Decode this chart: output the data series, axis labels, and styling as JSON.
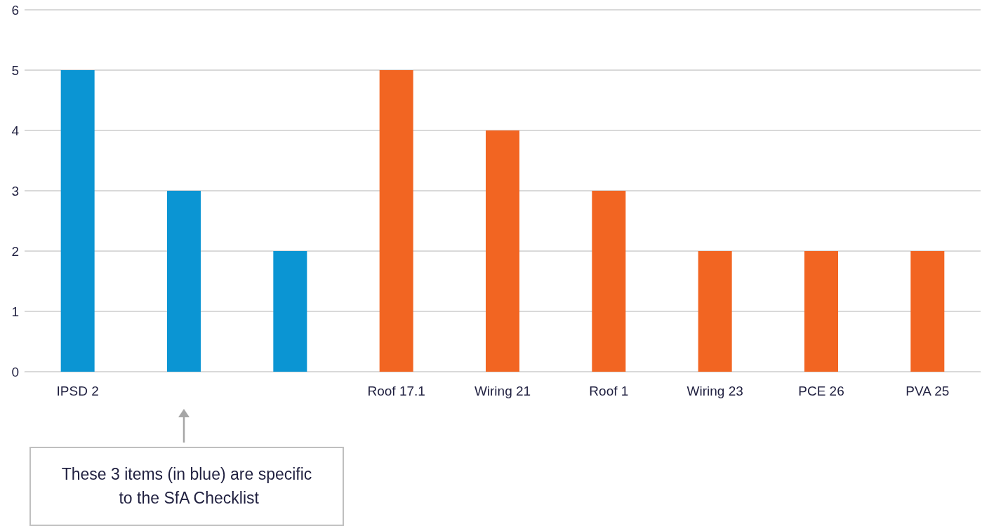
{
  "chart_data": {
    "type": "bar",
    "categories": [
      "IPSD 2",
      null,
      null,
      "Roof 17.1",
      "Wiring 21",
      "Roof 1",
      "Wiring 23",
      "PCE 26",
      "PVA 25"
    ],
    "values": [
      5,
      3,
      2,
      5,
      4,
      3,
      2,
      2,
      2
    ],
    "colors": [
      "#0b95d3",
      "#0b95d3",
      "#0b95d3",
      "#f26522",
      "#f26522",
      "#f26522",
      "#f26522",
      "#f26522",
      "#f26522"
    ],
    "ylim": [
      0,
      6
    ],
    "yticks": [
      0,
      1,
      2,
      3,
      4,
      5,
      6
    ],
    "grid": "y",
    "annotations": [
      "These 3 items (in blue) are specific to the SfA Checklist"
    ]
  }
}
